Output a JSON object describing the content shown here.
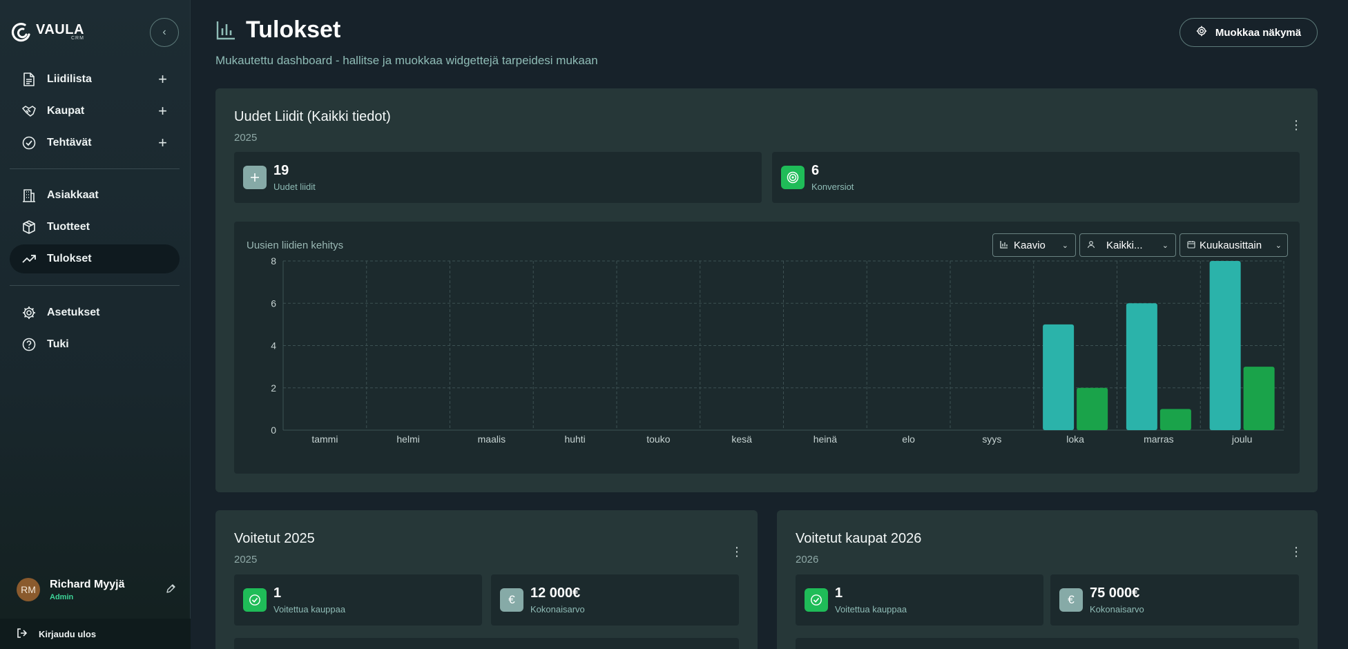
{
  "sidebar": {
    "logo": {
      "name": "VAULA",
      "sub": "CRM"
    },
    "primary_items": [
      {
        "label": "Liidilista",
        "icon": "document-icon",
        "has_add": true
      },
      {
        "label": "Kaupat",
        "icon": "handshake-icon",
        "has_add": true
      },
      {
        "label": "Tehtävät",
        "icon": "check-circle-icon",
        "has_add": true
      }
    ],
    "secondary_items": [
      {
        "label": "Asiakkaat",
        "icon": "building-icon"
      },
      {
        "label": "Tuotteet",
        "icon": "box-icon"
      },
      {
        "label": "Tulokset",
        "icon": "trending-up-icon",
        "active": true
      }
    ],
    "tertiary_items": [
      {
        "label": "Asetukset",
        "icon": "gear-icon"
      },
      {
        "label": "Tuki",
        "icon": "help-icon"
      }
    ],
    "user": {
      "initials": "RM",
      "name": "Richard Myyjä",
      "role": "Admin"
    },
    "logout_label": "Kirjaudu ulos"
  },
  "header": {
    "title": "Tulokset",
    "subtitle": "Mukautettu dashboard - hallitse ja muokkaa widgettejä tarpeidesi mukaan",
    "customize_label": "Muokkaa näkymä"
  },
  "widgets": {
    "leads": {
      "title": "Uudet Liidit (Kaikki tiedot)",
      "year": "2025",
      "stats": [
        {
          "value": "19",
          "label": "Uudet liidit",
          "icon": "plus-icon"
        },
        {
          "value": "6",
          "label": "Konversiot",
          "icon": "target-icon"
        }
      ],
      "chart_panel": {
        "title": "Uusien liidien kehitys",
        "controls": {
          "type": "Kaavio",
          "owner": "Kaikki...",
          "period": "Kuukausittain"
        }
      }
    },
    "won_2025": {
      "title": "Voitetut 2025",
      "year": "2025",
      "stats": [
        {
          "value": "1",
          "label": "Voitettua kauppaa",
          "icon": "check-circle-icon"
        },
        {
          "value": "12 000€",
          "label": "Kokonaisarvo",
          "icon": "euro-icon"
        }
      ]
    },
    "won_2026": {
      "title": "Voitetut kaupat 2026",
      "year": "2026",
      "stats": [
        {
          "value": "1",
          "label": "Voitettua kauppaa",
          "icon": "check-circle-icon"
        },
        {
          "value": "75 000€",
          "label": "Kokonaisarvo",
          "icon": "euro-icon"
        }
      ]
    }
  },
  "chart_data": {
    "type": "bar",
    "categories": [
      "tammi",
      "helmi",
      "maalis",
      "huhti",
      "touko",
      "kesä",
      "heinä",
      "elo",
      "syys",
      "loka",
      "marras",
      "joulu"
    ],
    "series": [
      {
        "values": [
          0,
          0,
          0,
          0,
          0,
          0,
          0,
          0,
          0,
          5,
          6,
          8
        ],
        "color": "#2bb3aa"
      },
      {
        "values": [
          0,
          0,
          0,
          0,
          0,
          0,
          0,
          0,
          0,
          2,
          1,
          3
        ],
        "color": "#1aa34a"
      }
    ],
    "ylim": [
      0,
      8
    ],
    "yticks": [
      0,
      2,
      4,
      6,
      8
    ],
    "grid": true
  },
  "colors": {
    "accent": "#2bb3aa",
    "success": "#1fbc58",
    "background": "#17222a",
    "card": "#263738"
  }
}
